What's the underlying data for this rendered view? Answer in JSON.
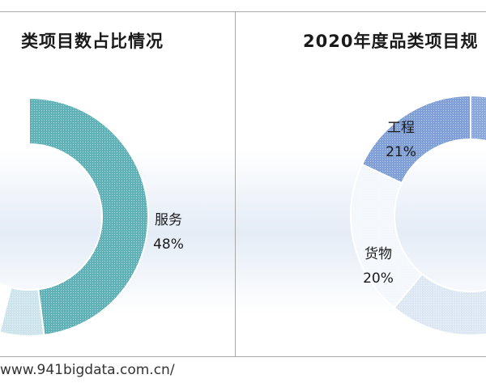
{
  "source_text": "www.941bigdata.com.cn/",
  "chart_data": [
    {
      "type": "pie",
      "style": "donut",
      "title": "类项目数占比情况",
      "slices": [
        {
          "name": "服务",
          "value": 48,
          "label_name": "服务",
          "label_value": "48%",
          "color": "#5fb1b6"
        },
        {
          "name": "",
          "value": 6,
          "label_name": "",
          "label_value": "",
          "color": "#cde4ec"
        },
        {
          "name": "",
          "value": 46,
          "label_name": "",
          "label_value": "",
          "color": "#ffffff"
        }
      ]
    },
    {
      "type": "pie",
      "style": "donut",
      "title": "2020年度品类项目规",
      "slices": [
        {
          "name": "",
          "value": 41,
          "label_name": "",
          "label_value": "",
          "color": "#8aa7dc"
        },
        {
          "name": "货物",
          "value": 20,
          "label_name": "货物",
          "label_value": "20%",
          "color": "#dde7f3"
        },
        {
          "name": "工程",
          "value": 21,
          "label_name": "工程",
          "label_value": "21%",
          "color": "#f4f8fc"
        },
        {
          "name": "",
          "value": 18,
          "label_name": "",
          "label_value": "",
          "color": "#7f9fd6"
        }
      ]
    }
  ]
}
